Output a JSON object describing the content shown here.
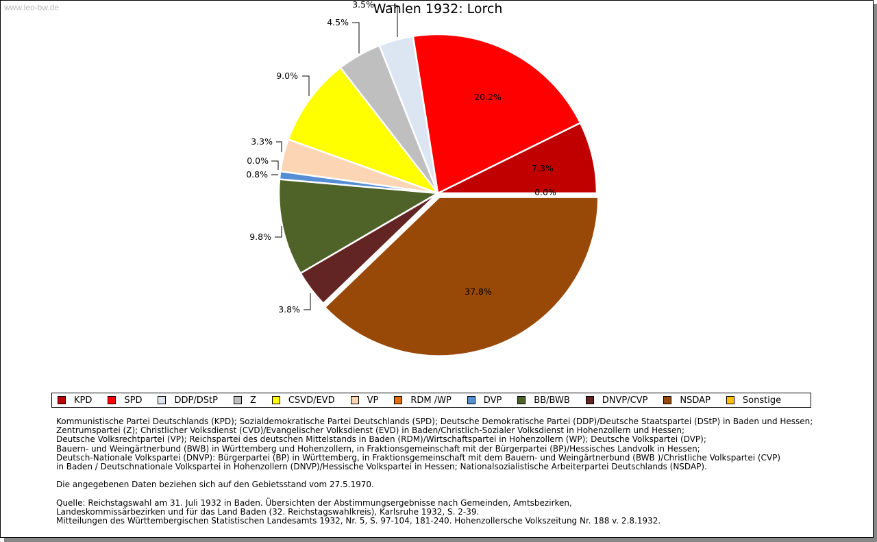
{
  "watermark": "www.leo-bw.de",
  "chart_data": {
    "type": "pie",
    "title": "Wahlen 1932: Lorch",
    "categories": [
      "KPD",
      "SPD",
      "DDP/DStP",
      "Z",
      "CSVD/EVD",
      "VP",
      "RDM /WP",
      "DVP",
      "BB/BWB",
      "DNVP/CVP",
      "NSDAP",
      "Sonstige"
    ],
    "values": [
      7.3,
      20.2,
      3.5,
      4.5,
      9.0,
      3.3,
      0.0,
      0.8,
      9.8,
      3.8,
      37.8,
      0.0
    ],
    "labels": [
      "7.3%",
      "20.2%",
      "3.5%",
      "4.5%",
      "9.0%",
      "3.3%",
      "0.0%",
      "0.8%",
      "9.8%",
      "3.8%",
      "37.8%",
      "0.0%"
    ],
    "colors": [
      "#c00000",
      "#ff0000",
      "#dce6f2",
      "#bfbfbf",
      "#ffff00",
      "#fcd5b5",
      "#e46c0a",
      "#558ed5",
      "#4f6228",
      "#632523",
      "#984807",
      "#ffc000"
    ],
    "exploded": [
      "NSDAP"
    ],
    "legend_position": "bottom"
  },
  "notes": [
    "Kommunistische Partei Deutschlands (KPD); Sozialdemokratische Partei Deutschlands (SPD); Deutsche Demokratische Partei (DDP)/Deutsche Staatspartei (DStP) in Baden und Hessen;",
    "Zentrumspartei (Z); Christlicher Volksdienst (CVD)/Evangelischer Volksdienst (EVD) in Baden/Christlich-Sozialer Volksdienst in Hohenzollern und Hessen;",
    "Deutsche Volksrechtpartei (VP); Reichspartei des deutschen Mittelstands in Baden (RDM)/Wirtschaftspartei in Hohenzollern (WP); Deutsche Volkspartei (DVP);",
    "Bauern- und Weingärtnerbund (BWB) in Württemberg und Hohenzollern, in Fraktionsgemeinschaft mit der Bürgerpartei (BP)/Hessisches Landvolk in Hessen;",
    "Deutsch-Nationale Volkspartei (DNVP): Bürgerpartei (BP) in Württemberg, in Fraktionsgemeinschaft mit dem Bauern- und Weingärtnerbund (BWB )/Christliche Volkspartei (CVP)",
    "in Baden / Deutschnationale Volkspartei in Hohenzollern (DNVP)/Hessische Volkspartei in Hessen; Nationalsozialistische Arbeiterpartei Deutschlands (NSDAP).",
    "",
    "Die angegebenen Daten beziehen sich auf den Gebietsstand vom 27.5.1970.",
    "",
    "Quelle: Reichstagswahl am 31. Juli 1932 in Baden. Übersichten der Abstimmungsergebnisse nach Gemeinden, Amtsbezirken,",
    "Landeskommissärbezirken und für das Land Baden (32. Reichstagswahlkreis), Karlsruhe 1932, S. 2-39.",
    "Mitteilungen des Württembergischen Statistischen Landesamts 1932, Nr. 5, S. 97-104, 181-240. Hohenzollersche Volkszeitung Nr. 188 v. 2.8.1932."
  ]
}
